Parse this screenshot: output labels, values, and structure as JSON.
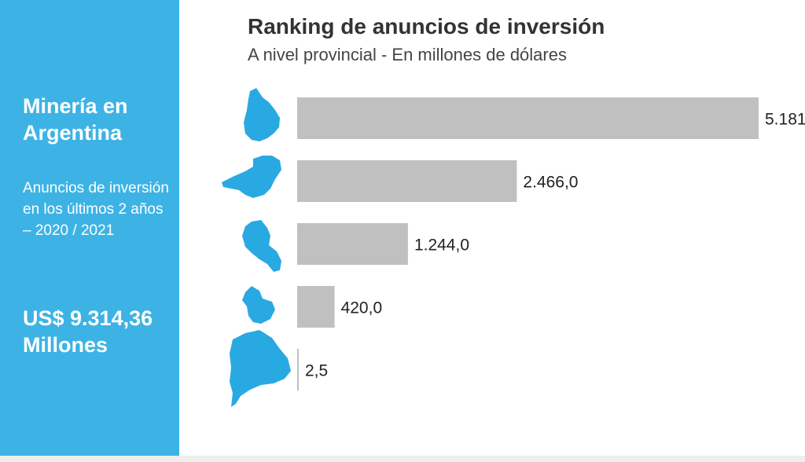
{
  "sidebar": {
    "title": "Minería en Argentina",
    "subtitle": "Anuncios de inversión en los últimos 2 años – 2020 / 2021",
    "amount": "US$ 9.314,36 Millones",
    "background_color": "#3DB3E5"
  },
  "chart_data": {
    "type": "bar",
    "orientation": "horizontal",
    "title": "Ranking de anuncios de inversión",
    "subtitle": "A nivel provincial - En millones de dólares",
    "categories": [
      "province-1",
      "province-2",
      "province-3",
      "province-4",
      "province-5"
    ],
    "category_icons": [
      "province-map-icon",
      "province-map-icon",
      "province-map-icon",
      "province-map-icon",
      "province-map-icon"
    ],
    "values": [
      5181,
      2466.0,
      1244.0,
      420.0,
      2.5
    ],
    "value_labels": [
      "5.181",
      "2.466,0",
      "1.244,0",
      "420,0",
      "2,5"
    ],
    "bar_color": "#C0C0C0",
    "icon_color": "#29A9E1",
    "grid": false,
    "legend": false
  }
}
